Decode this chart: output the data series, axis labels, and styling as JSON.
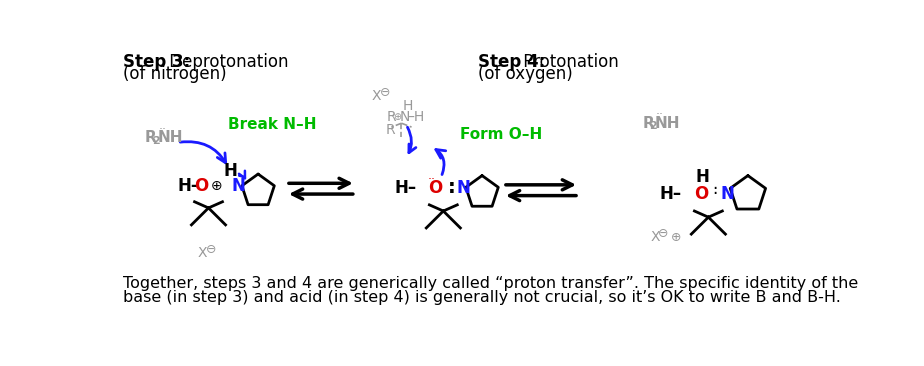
{
  "background_color": "#ffffff",
  "step3_label": "Step 3:",
  "step3_desc1": " Deprotonation",
  "step3_desc2": "(of nitrogen)",
  "step4_label": "Step 4:",
  "step4_desc1": " Protonation",
  "step4_desc2": "(of oxygen)",
  "break_label": "Break N–H",
  "form_label": "Form O–H",
  "footer_line1": "Together, steps 3 and 4 are generically called “proton transfer”. The specific identity of the",
  "footer_line2": "base (in step 3) and acid (in step 4) is generally not crucial, so it’s OK to write B and B-H.",
  "colors": {
    "black": "#000000",
    "gray": "#999999",
    "blue": "#1a1aff",
    "green": "#00bb00",
    "red": "#dd0000"
  }
}
